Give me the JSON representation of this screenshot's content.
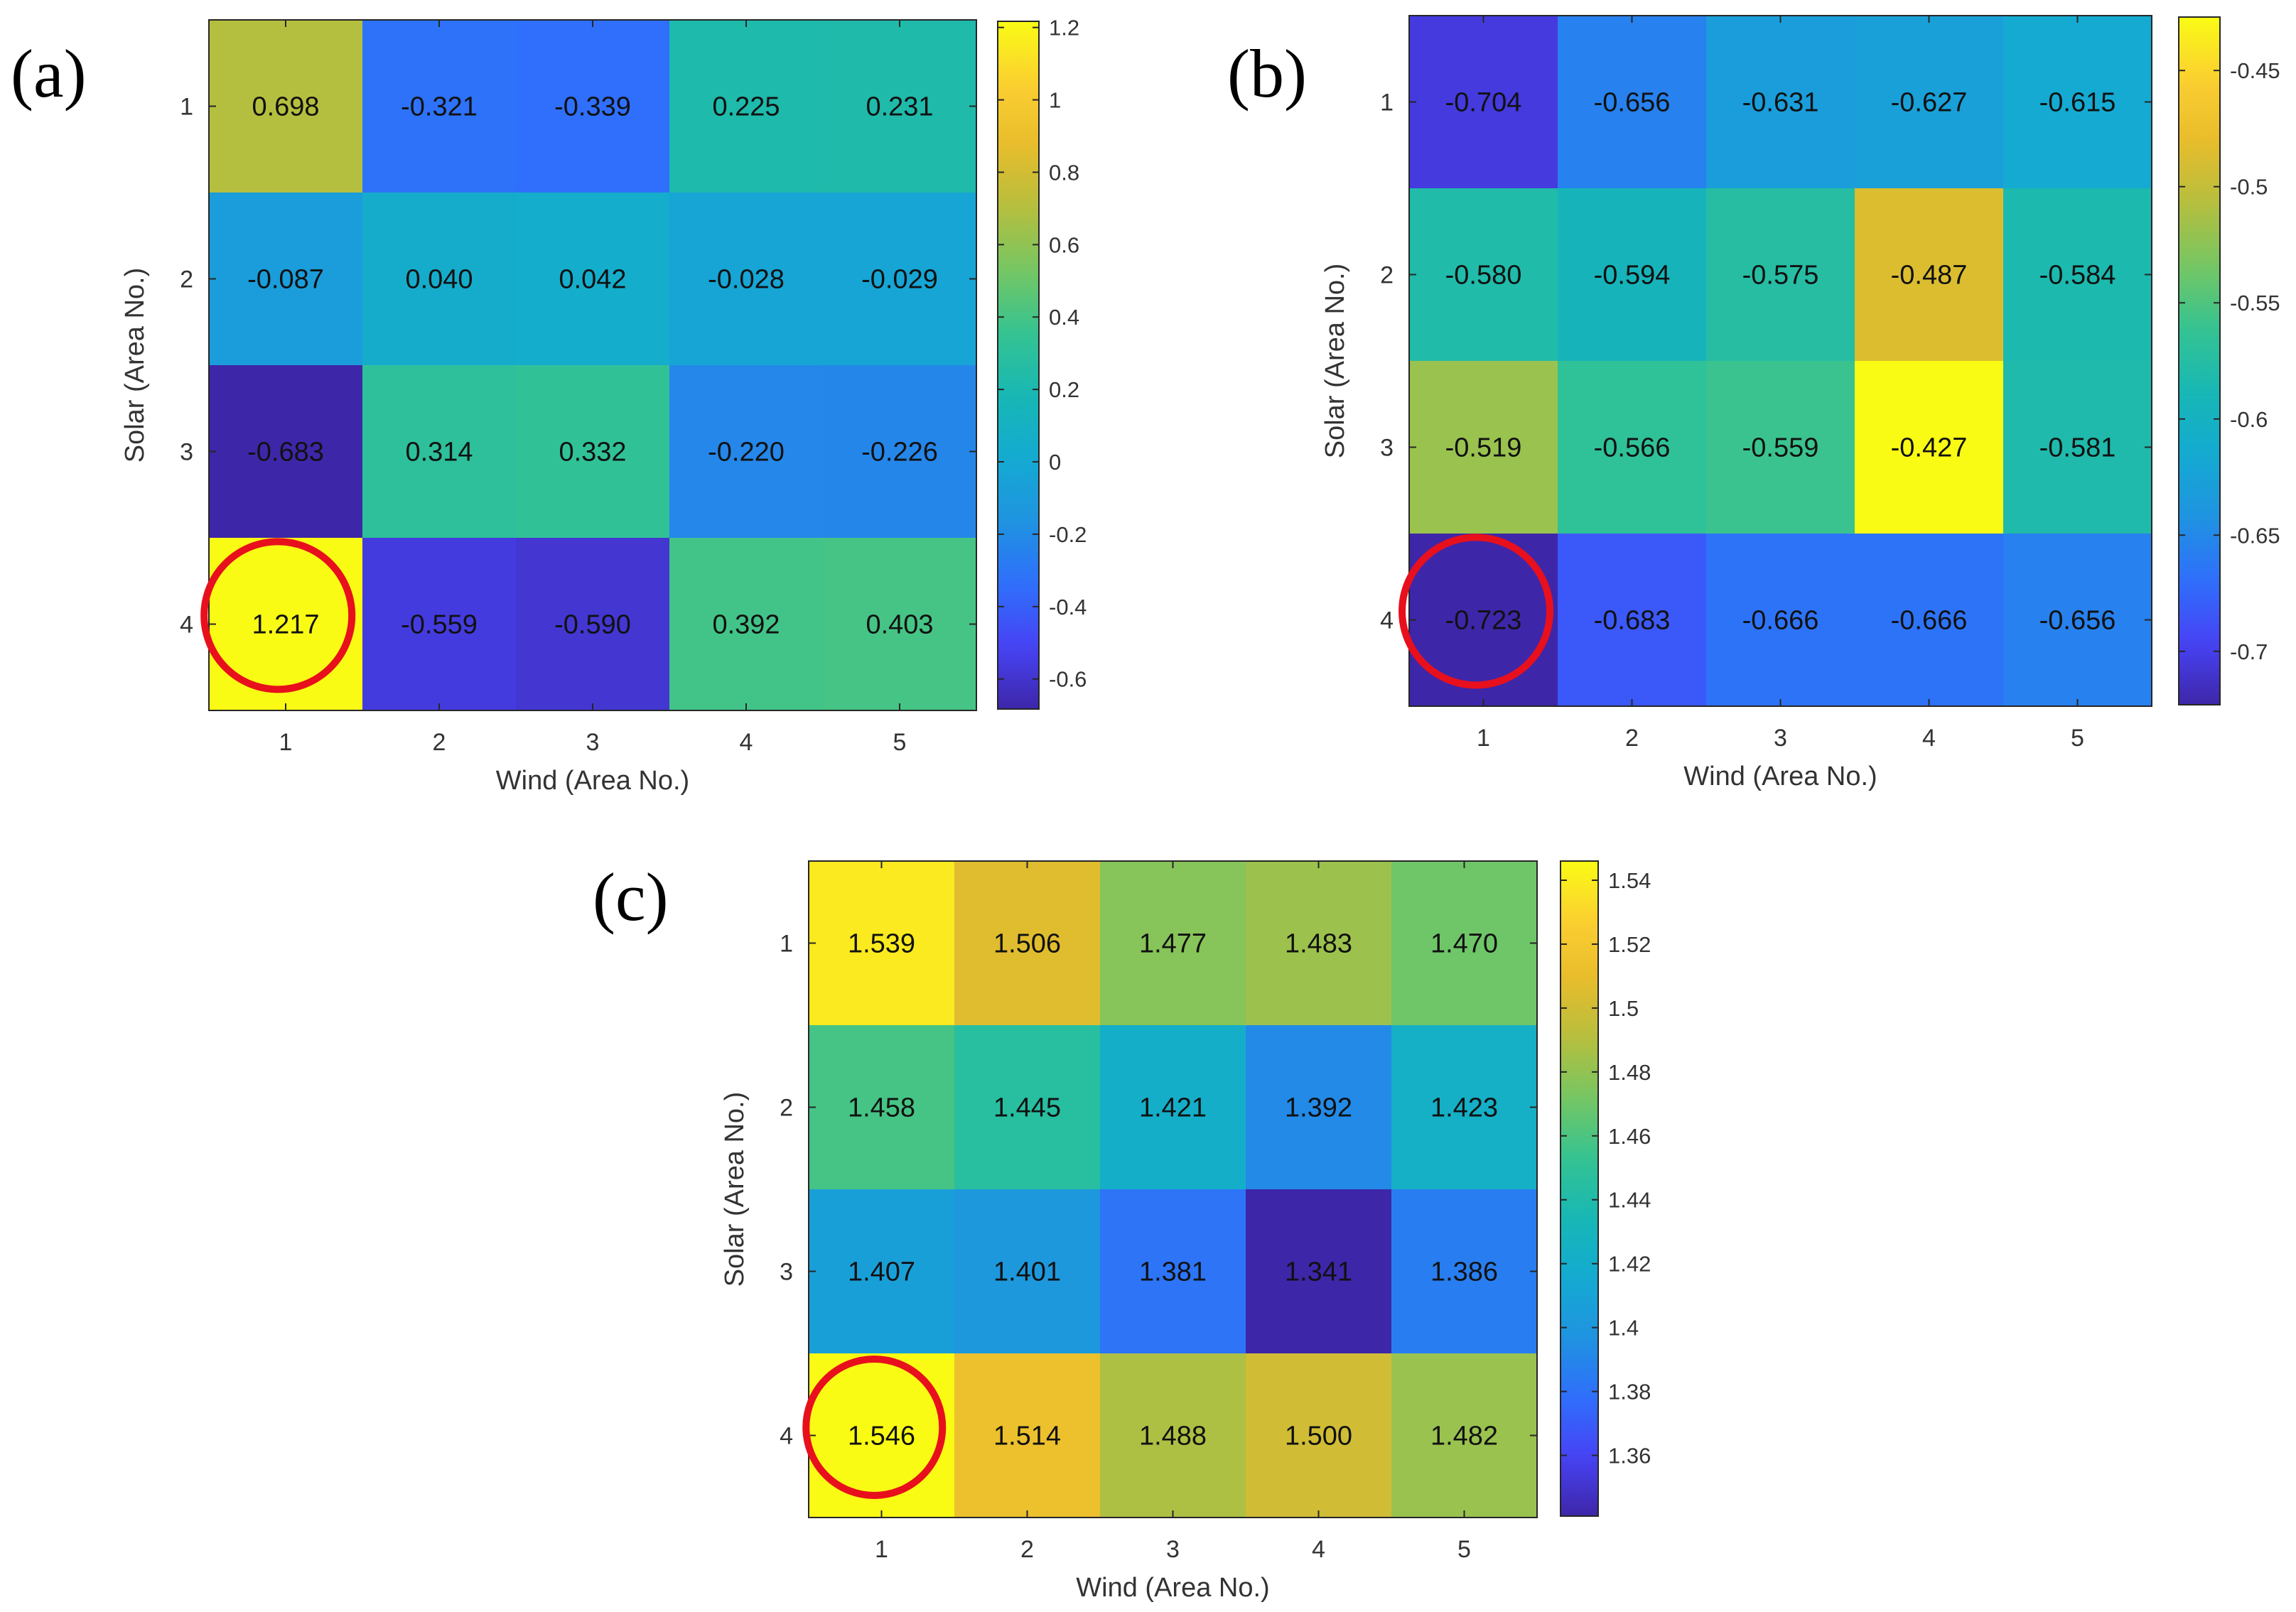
{
  "figure": {
    "colormap": [
      "#3e26a8",
      "#4743f5",
      "#2f6ffb",
      "#1f93e0",
      "#14aad2",
      "#17b7b4",
      "#34c392",
      "#74c664",
      "#b5bf3f",
      "#e7bc2c",
      "#fbcf30",
      "#f9fb15"
    ],
    "highlight_color": "#e8101c"
  },
  "chart_data": [
    {
      "type": "heatmap",
      "panel": "(a)",
      "xlabel": "Wind (Area No.)",
      "ylabel": "Solar (Area No.)",
      "x_ticks": [
        "1",
        "2",
        "3",
        "4",
        "5"
      ],
      "y_ticks": [
        "1",
        "2",
        "3",
        "4"
      ],
      "cell_labels": [
        [
          "0.698",
          "-0.321",
          "-0.339",
          "0.225",
          "0.231"
        ],
        [
          "-0.087",
          "0.040",
          "0.042",
          "-0.028",
          "-0.029"
        ],
        [
          "-0.683",
          "0.314",
          "0.332",
          "-0.220",
          "-0.226"
        ],
        [
          "1.217",
          "-0.559",
          "-0.590",
          "0.392",
          "0.403"
        ]
      ],
      "values": [
        [
          0.698,
          -0.321,
          -0.339,
          0.225,
          0.231
        ],
        [
          -0.087,
          0.04,
          0.042,
          -0.028,
          -0.029
        ],
        [
          -0.683,
          0.314,
          0.332,
          -0.22,
          -0.226
        ],
        [
          1.217,
          -0.559,
          -0.59,
          0.392,
          0.403
        ]
      ],
      "clim": [
        -0.683,
        1.217
      ],
      "colorbar_ticks": [
        "1.2",
        "1",
        "0.8",
        "0.6",
        "0.4",
        "0.2",
        "0",
        "-0.2",
        "-0.4",
        "-0.6"
      ],
      "highlight": {
        "row": 3,
        "col": 0
      }
    },
    {
      "type": "heatmap",
      "panel": "(b)",
      "xlabel": "Wind (Area No.)",
      "ylabel": "Solar (Area No.)",
      "x_ticks": [
        "1",
        "2",
        "3",
        "4",
        "5"
      ],
      "y_ticks": [
        "1",
        "2",
        "3",
        "4"
      ],
      "cell_labels": [
        [
          "-0.704",
          "-0.656",
          "-0.631",
          "-0.627",
          "-0.615"
        ],
        [
          "-0.580",
          "-0.594",
          "-0.575",
          "-0.487",
          "-0.584"
        ],
        [
          "-0.519",
          "-0.566",
          "-0.559",
          "-0.427",
          "-0.581"
        ],
        [
          "-0.723",
          "-0.683",
          "-0.666",
          "-0.666",
          "-0.656"
        ]
      ],
      "values": [
        [
          -0.704,
          -0.656,
          -0.631,
          -0.627,
          -0.615
        ],
        [
          -0.58,
          -0.594,
          -0.575,
          -0.487,
          -0.584
        ],
        [
          -0.519,
          -0.566,
          -0.559,
          -0.427,
          -0.581
        ],
        [
          -0.723,
          -0.683,
          -0.666,
          -0.666,
          -0.656
        ]
      ],
      "clim": [
        -0.723,
        -0.427
      ],
      "colorbar_ticks": [
        "-0.45",
        "-0.5",
        "-0.55",
        "-0.6",
        "-0.65",
        "-0.7"
      ],
      "highlight": {
        "row": 3,
        "col": 0
      }
    },
    {
      "type": "heatmap",
      "panel": "(c)",
      "xlabel": "Wind (Area No.)",
      "ylabel": "Solar (Area No.)",
      "x_ticks": [
        "1",
        "2",
        "3",
        "4",
        "5"
      ],
      "y_ticks": [
        "1",
        "2",
        "3",
        "4"
      ],
      "cell_labels": [
        [
          "1.539",
          "1.506",
          "1.477",
          "1.483",
          "1.470"
        ],
        [
          "1.458",
          "1.445",
          "1.421",
          "1.392",
          "1.423"
        ],
        [
          "1.407",
          "1.401",
          "1.381",
          "1.341",
          "1.386"
        ],
        [
          "1.546",
          "1.514",
          "1.488",
          "1.500",
          "1.482"
        ]
      ],
      "values": [
        [
          1.539,
          1.506,
          1.477,
          1.483,
          1.47
        ],
        [
          1.458,
          1.445,
          1.421,
          1.392,
          1.423
        ],
        [
          1.407,
          1.401,
          1.381,
          1.341,
          1.386
        ],
        [
          1.546,
          1.514,
          1.488,
          1.5,
          1.482
        ]
      ],
      "clim": [
        1.341,
        1.546
      ],
      "colorbar_ticks": [
        "1.54",
        "1.52",
        "1.5",
        "1.48",
        "1.46",
        "1.44",
        "1.42",
        "1.4",
        "1.38",
        "1.36"
      ],
      "highlight": {
        "row": 3,
        "col": 0
      }
    }
  ]
}
